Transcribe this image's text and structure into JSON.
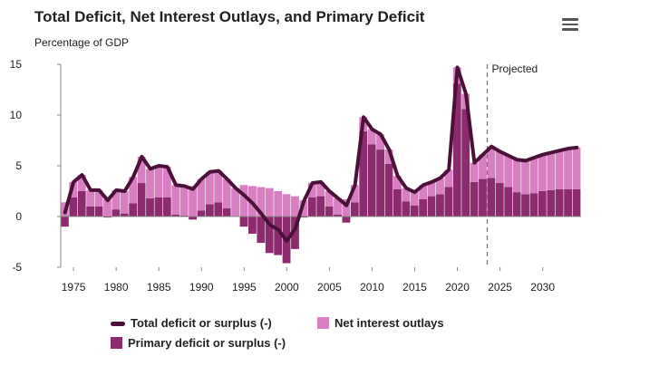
{
  "chart_data": {
    "type": "bar",
    "title": "Total Deficit, Net Interest Outlays, and Primary Deficit",
    "ylabel": "Percentage of GDP",
    "xlabel": "",
    "ylim": [
      -5,
      15
    ],
    "y_ticks": [
      "15",
      "10",
      "5",
      "0",
      "-5"
    ],
    "x_ticks": [
      "1975",
      "1980",
      "1985",
      "1990",
      "1995",
      "2000",
      "2005",
      "2010",
      "2015",
      "2020",
      "2025",
      "2030"
    ],
    "projected_label": "Projected",
    "projected_start_year": 2023.5,
    "years": [
      1974,
      1975,
      1976,
      1977,
      1978,
      1979,
      1980,
      1981,
      1982,
      1983,
      1984,
      1985,
      1986,
      1987,
      1988,
      1989,
      1990,
      1991,
      1992,
      1993,
      1994,
      1995,
      1996,
      1997,
      1998,
      1999,
      2000,
      2001,
      2002,
      2003,
      2004,
      2005,
      2006,
      2007,
      2008,
      2009,
      2010,
      2011,
      2012,
      2013,
      2014,
      2015,
      2016,
      2017,
      2018,
      2019,
      2020,
      2021,
      2022,
      2023,
      2024,
      2025,
      2026,
      2027,
      2028,
      2029,
      2030,
      2031,
      2032,
      2033,
      2034
    ],
    "series": [
      {
        "name": "Total deficit or surplus (-)",
        "kind": "line",
        "color": "#4a1238",
        "values": [
          0.4,
          3.4,
          4.1,
          2.6,
          2.6,
          1.6,
          2.6,
          2.5,
          3.9,
          5.9,
          4.7,
          5.0,
          4.9,
          3.1,
          3.0,
          2.7,
          3.7,
          4.4,
          4.5,
          3.7,
          2.8,
          2.1,
          1.3,
          0.3,
          -0.8,
          -1.3,
          -2.4,
          -1.2,
          1.5,
          3.3,
          3.4,
          2.5,
          1.8,
          1.1,
          3.1,
          9.8,
          8.6,
          8.1,
          6.6,
          4.0,
          2.8,
          2.4,
          3.1,
          3.4,
          3.8,
          4.6,
          14.7,
          12.1,
          5.3,
          6.1,
          6.9,
          6.4,
          6.0,
          5.6,
          5.5,
          5.8,
          6.1,
          6.3,
          6.5,
          6.7,
          6.8
        ]
      },
      {
        "name": "Net interest outlays",
        "kind": "bar",
        "color": "#d77fc1",
        "values": [
          1.4,
          1.5,
          1.6,
          1.6,
          1.6,
          1.7,
          1.9,
          2.2,
          2.6,
          2.6,
          2.9,
          3.1,
          3.0,
          2.9,
          2.9,
          3.0,
          3.1,
          3.2,
          3.1,
          2.9,
          2.8,
          3.1,
          3.0,
          2.9,
          2.8,
          2.5,
          2.2,
          2.0,
          1.6,
          1.4,
          1.4,
          1.5,
          1.6,
          1.7,
          1.7,
          1.4,
          1.5,
          1.5,
          1.4,
          1.3,
          1.3,
          1.3,
          1.4,
          1.4,
          1.6,
          1.7,
          1.6,
          1.5,
          1.9,
          2.4,
          3.1,
          3.1,
          3.1,
          3.2,
          3.3,
          3.5,
          3.6,
          3.7,
          3.8,
          4.0,
          4.1
        ]
      },
      {
        "name": "Primary deficit or surplus (-)",
        "kind": "bar",
        "color": "#8c2b6d",
        "values": [
          -1.0,
          1.9,
          2.5,
          1.0,
          1.0,
          -0.1,
          0.7,
          0.3,
          1.3,
          3.3,
          1.8,
          1.9,
          1.9,
          0.2,
          0.1,
          -0.3,
          0.6,
          1.2,
          1.4,
          0.8,
          0.0,
          -1.0,
          -1.7,
          -2.6,
          -3.6,
          -3.8,
          -4.6,
          -3.2,
          -0.1,
          1.9,
          2.0,
          1.0,
          0.2,
          -0.6,
          1.4,
          8.4,
          7.1,
          6.6,
          5.2,
          2.7,
          1.5,
          1.1,
          1.7,
          2.0,
          2.2,
          2.9,
          13.1,
          10.6,
          3.4,
          3.7,
          3.8,
          3.3,
          2.9,
          2.4,
          2.2,
          2.3,
          2.5,
          2.6,
          2.7,
          2.7,
          2.7
        ]
      }
    ]
  },
  "legend": {
    "total": "Total deficit or surplus (-)",
    "interest": "Net interest outlays",
    "primary": "Primary deficit or surplus (-)"
  },
  "menu": {
    "icon": "hamburger-menu-icon"
  }
}
